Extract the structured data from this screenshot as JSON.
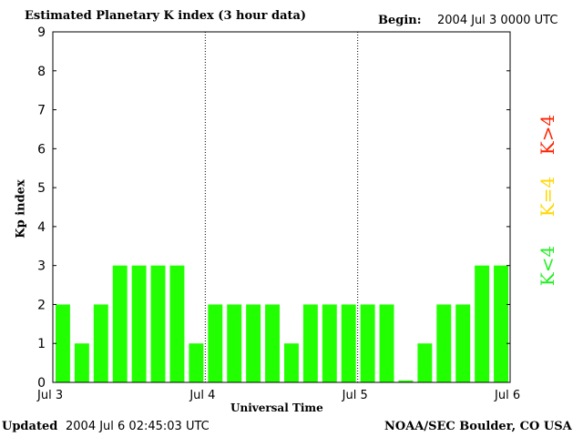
{
  "header": {
    "title": "Estimated Planetary K index (3 hour data)",
    "begin_label": "Begin:",
    "begin_value": "2004 Jul 3 0000 UTC"
  },
  "footer": {
    "updated_label": "Updated",
    "updated_value": "2004 Jul  6 02:45:03 UTC",
    "org": "NOAA/SEC Boulder, CO USA"
  },
  "legend": {
    "gt4": "K>4",
    "eq4": "K=4",
    "lt4": "K<4",
    "colors": {
      "gt4": "#ff2200",
      "eq4": "#ffd700",
      "lt4": "#22ee22"
    }
  },
  "chart_data": {
    "type": "bar",
    "title": "Estimated Planetary K index (3 hour data)",
    "xlabel": "Universal Time",
    "ylabel": "Kp index",
    "ylim": [
      0,
      9
    ],
    "yticks": [
      "0",
      "1",
      "2",
      "3",
      "4",
      "5",
      "6",
      "7",
      "8",
      "9"
    ],
    "xticks": [
      "Jul 3",
      "Jul 4",
      "Jul 5",
      "Jul 6"
    ],
    "day_dividers": "dotted",
    "bar_color": "#22ff00",
    "values": [
      2,
      1,
      2,
      3,
      3,
      3,
      3,
      1,
      2,
      2,
      2,
      2,
      1,
      2,
      2,
      2,
      2,
      2,
      0.05,
      1,
      2,
      2,
      3,
      3
    ]
  }
}
